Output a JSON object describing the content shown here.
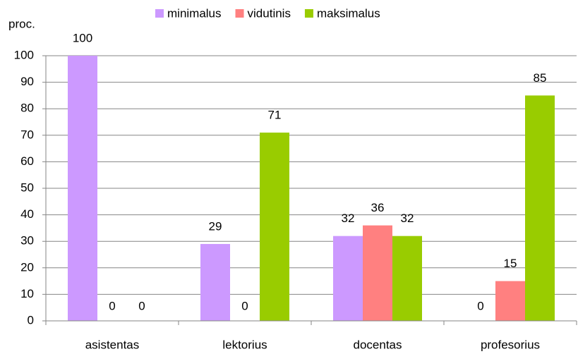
{
  "chart_data": {
    "type": "bar",
    "y_label": "proc.",
    "categories": [
      "asistentas",
      "lektorius",
      "docentas",
      "profesorius"
    ],
    "series": [
      {
        "name": "minimalus",
        "color": "#cc99ff",
        "values": [
          100,
          29,
          32,
          0
        ]
      },
      {
        "name": "vidutinis",
        "color": "#ff8080",
        "values": [
          0,
          0,
          36,
          15
        ]
      },
      {
        "name": "maksimalus",
        "color": "#99cc00",
        "values": [
          0,
          71,
          32,
          85
        ]
      }
    ],
    "ylim": [
      0,
      100
    ],
    "yticks": [
      0,
      10,
      20,
      30,
      40,
      50,
      60,
      70,
      80,
      90,
      100
    ],
    "grid": true,
    "legend": "top"
  }
}
